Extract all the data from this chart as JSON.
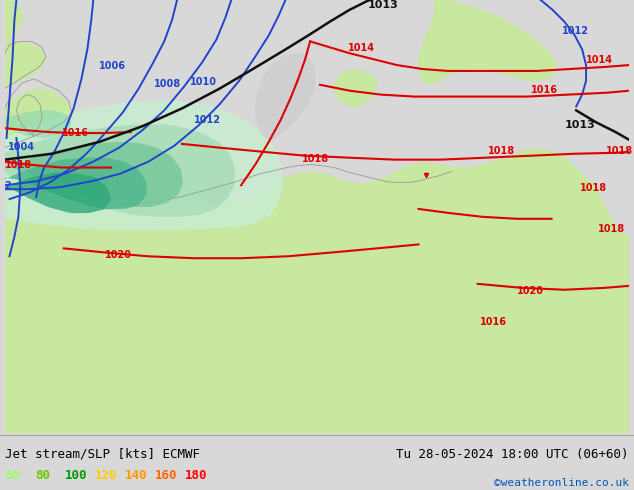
{
  "title_left": "Jet stream/SLP [kts] ECMWF",
  "title_right": "Tu 28-05-2024 18:00 UTC (06+60)",
  "credit": "©weatheronline.co.uk",
  "legend_values": [
    "60",
    "80",
    "100",
    "120",
    "140",
    "160",
    "180"
  ],
  "legend_colors": [
    "#99ff66",
    "#66cc00",
    "#009900",
    "#ffcc00",
    "#ff9900",
    "#ff6600",
    "#ff0000"
  ],
  "figsize": [
    6.34,
    4.9
  ],
  "dpi": 100,
  "bg_sea": "#c8cfd8",
  "bg_land": "#c8e8a0",
  "jet_color_outer": "#a8e878",
  "jet_color_mid": "#70c870",
  "jet_color_inner": "#50b860",
  "jet_color_teal": "#70d0c0",
  "isobar_blue": "#2244cc",
  "isobar_red": "#dd0000",
  "isobar_black": "#111111",
  "bottom_bg": "#d8d8d8"
}
